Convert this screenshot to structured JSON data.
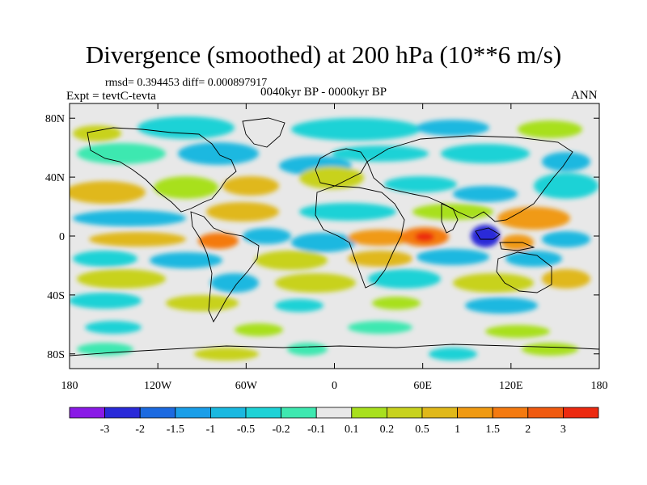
{
  "title": "Divergence (smoothed) at 200 hPa (10**6 m/s)",
  "stats": "rmsd= 0.394453  diff= 0.000897917",
  "experiment": "Expt = tevtC-tevta",
  "period": "0040kyr BP - 0000kyr BP",
  "season": "ANN",
  "map": {
    "projection": "cylindrical-equidistant",
    "lon_range": [
      -180,
      180
    ],
    "lat_range": [
      -90,
      90
    ],
    "land_overlay": "coastlines",
    "y_ticks": [
      {
        "lat": 80,
        "label": "80N"
      },
      {
        "lat": 40,
        "label": "40N"
      },
      {
        "lat": 0,
        "label": "0"
      },
      {
        "lat": -40,
        "label": "40S"
      },
      {
        "lat": -80,
        "label": "80S"
      }
    ],
    "x_ticks": [
      {
        "lon": -180,
        "label": "180"
      },
      {
        "lon": -120,
        "label": "120W"
      },
      {
        "lon": -60,
        "label": "60W"
      },
      {
        "lon": 0,
        "label": "0"
      },
      {
        "lon": 60,
        "label": "60E"
      },
      {
        "lon": 120,
        "label": "120E"
      },
      {
        "lon": 180,
        "label": "180"
      }
    ]
  },
  "colorbar": {
    "colors": [
      "#8a1ae6",
      "#2a2ad8",
      "#1c6ae0",
      "#1a9ee8",
      "#1ab8e0",
      "#1ed2d6",
      "#3ee8b0",
      "#e8e8e8",
      "#a8e01e",
      "#c8d21e",
      "#e0b81a",
      "#f09a12",
      "#f47a10",
      "#f05a10",
      "#ec2a10"
    ],
    "labels": [
      "-3",
      "-2",
      "-1.5",
      "-1",
      "-0.5",
      "-0.2",
      "-0.1",
      "0.1",
      "0.2",
      "0.5",
      "1",
      "1.5",
      "2",
      "3"
    ]
  }
}
